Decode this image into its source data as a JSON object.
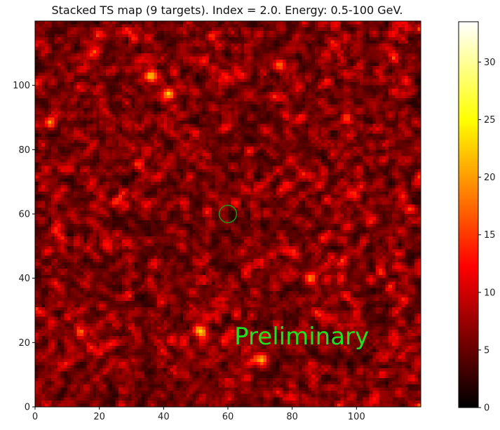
{
  "chart_data": {
    "type": "heatmap",
    "title": "Stacked TS map (9 targets). Index = 2.0. Energy: 0.5-100 GeV.",
    "xlabel": "",
    "ylabel": "",
    "grid_size": 120,
    "xlim": [
      0,
      120
    ],
    "ylim": [
      0,
      120
    ],
    "x_ticks": [
      0,
      20,
      40,
      60,
      80,
      100
    ],
    "y_ticks": [
      0,
      20,
      40,
      60,
      80,
      100
    ],
    "colormap": "hot",
    "colorbar": {
      "min": 0,
      "max": 33.5,
      "ticks": [
        0,
        5,
        10,
        15,
        20,
        25,
        30
      ]
    },
    "hotspots": [
      {
        "x": 51,
        "y": 23,
        "value": 28
      },
      {
        "x": 70,
        "y": 14,
        "value": 27
      },
      {
        "x": 41,
        "y": 97,
        "value": 26
      },
      {
        "x": 36,
        "y": 103,
        "value": 24
      },
      {
        "x": 4,
        "y": 88,
        "value": 20
      },
      {
        "x": 76,
        "y": 106,
        "value": 18
      },
      {
        "x": 85,
        "y": 40,
        "value": 17
      }
    ],
    "marker": {
      "shape": "circle",
      "x": 60,
      "y": 60,
      "radius": 2.7,
      "color": "#1a9a1a"
    },
    "annotation": {
      "text": "Preliminary",
      "x": 62,
      "y": 22,
      "color": "#22dd22"
    }
  }
}
